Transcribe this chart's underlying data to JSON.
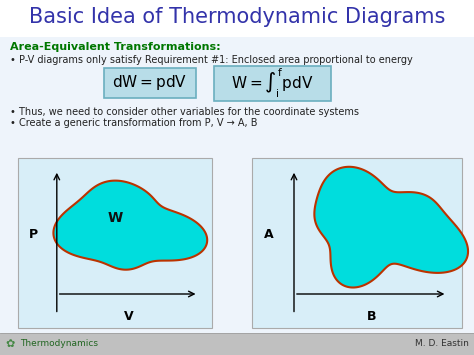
{
  "title": "Basic Idea of Thermodynamic Diagrams",
  "title_color": "#3333aa",
  "title_fontsize": 15,
  "subtitle_green": "Area-Equivalent Transformations:",
  "subtitle_color": "#007700",
  "subtitle_fontsize": 8,
  "bullet1": "• P-V diagrams only satisfy Requirement #1: Enclosed area proportional to energy",
  "bullet2": "• Thus, we need to consider other variables for the coordinate systems",
  "bullet3": "• Create a generic transformation from P, V → A, B",
  "bullet_fontsize": 7,
  "box_bg": "#b8dde8",
  "box_border": "#6aafbf",
  "diagram_bg": "#d8eef8",
  "blob_fill": "#00dddd",
  "blob_edge": "#bb3300",
  "footer_bg": "#c0c0c0",
  "footer_text_left": "Thermodynamics",
  "footer_text_right": "M. D. Eastin",
  "slide_bg": "#eef4fb",
  "slide_bg2": "#ffffff"
}
